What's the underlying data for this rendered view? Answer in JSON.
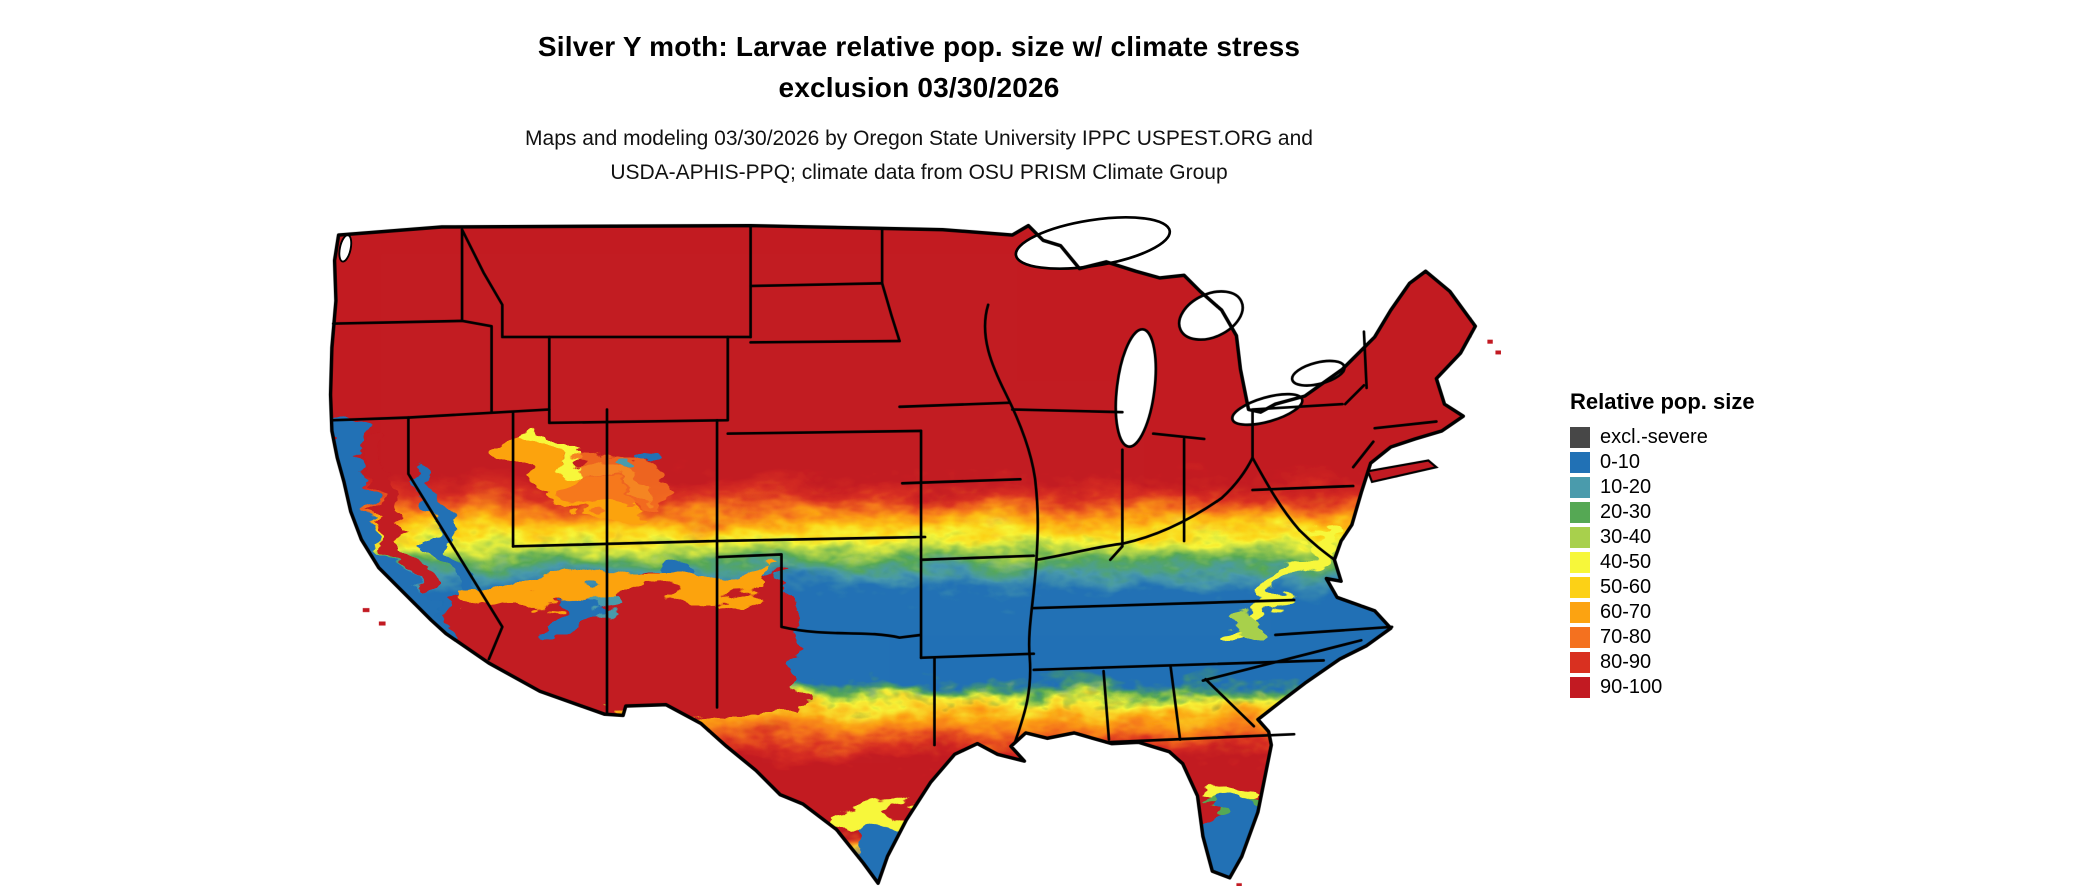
{
  "header": {
    "title_line1": "Silver Y moth: Larvae relative pop. size w/ climate stress",
    "title_line2": "exclusion 03/30/2026",
    "subtitle_line1": "Maps and modeling 03/30/2026 by Oregon State University IPPC USPEST.ORG and",
    "subtitle_line2": "USDA-APHIS-PPQ; climate data from OSU PRISM Climate Group"
  },
  "map": {
    "region": "Contiguous United States",
    "description": "Raster map of larvae relative population size: red (90-100) across the entire northern U.S., banding south through orange, yellow and green to a blue (0-10) belt across the central-southern states and southeast, returning to red along the Gulf Coast, desert Southwest and Florida, with blue again at the southern tips of Texas and Florida and mottled mountain/coast patterns in California and the Great Basin."
  },
  "legend": {
    "title": "Relative pop. size",
    "items": [
      {
        "label": "excl.-severe",
        "color": "#474747"
      },
      {
        "label": "0-10",
        "color": "#2171b5"
      },
      {
        "label": "10-20",
        "color": "#4a9bac"
      },
      {
        "label": "20-30",
        "color": "#55a854"
      },
      {
        "label": "30-40",
        "color": "#a8d04c"
      },
      {
        "label": "40-50",
        "color": "#f7f73a"
      },
      {
        "label": "50-60",
        "color": "#fcd116"
      },
      {
        "label": "60-70",
        "color": "#fca311"
      },
      {
        "label": "70-80",
        "color": "#f4711f"
      },
      {
        "label": "80-90",
        "color": "#d93020"
      },
      {
        "label": "90-100",
        "color": "#c21a22"
      }
    ]
  }
}
